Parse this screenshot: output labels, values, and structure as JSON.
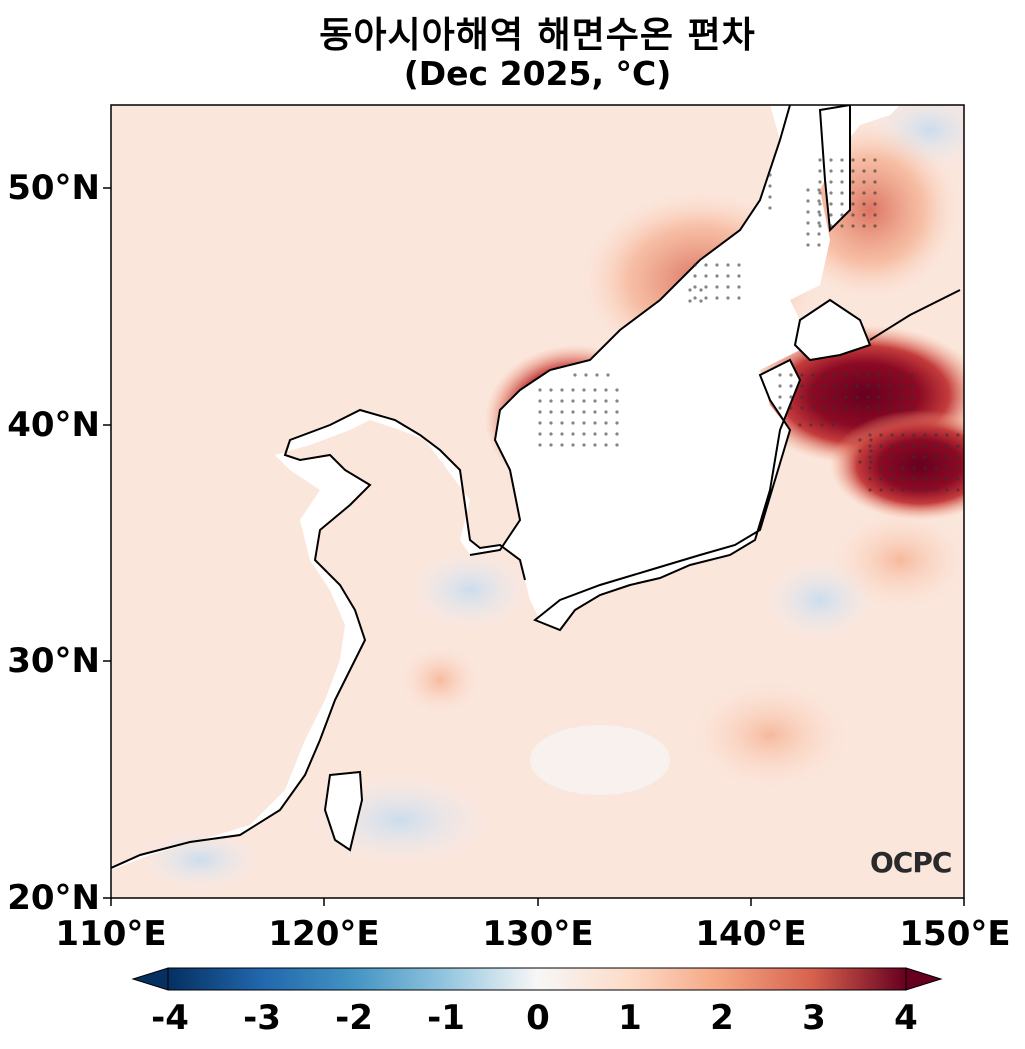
{
  "title": "동아시아해역 해면수온 편차",
  "subtitle": "(Dec 2025, °C)",
  "logo_text": "OCPC",
  "map": {
    "lon_range": [
      110,
      150
    ],
    "lat_range": [
      20,
      53.5
    ],
    "x_ticks": [
      "110°E",
      "120°E",
      "130°E",
      "140°E",
      "150°E"
    ],
    "y_ticks": [
      "20°N",
      "30°N",
      "40°N",
      "50°N"
    ]
  },
  "colorbar": {
    "range": [
      -4,
      4
    ],
    "ticks": [
      "-4",
      "-3",
      "-2",
      "-1",
      "0",
      "1",
      "2",
      "3",
      "4"
    ],
    "colormap": "RdBu_r",
    "extend": "both"
  },
  "colors": {
    "max_warm": "#67001f",
    "warm": "#d6604d",
    "neutral": "#f7f7f7",
    "cool": "#4393c3",
    "max_cool": "#053061"
  }
}
